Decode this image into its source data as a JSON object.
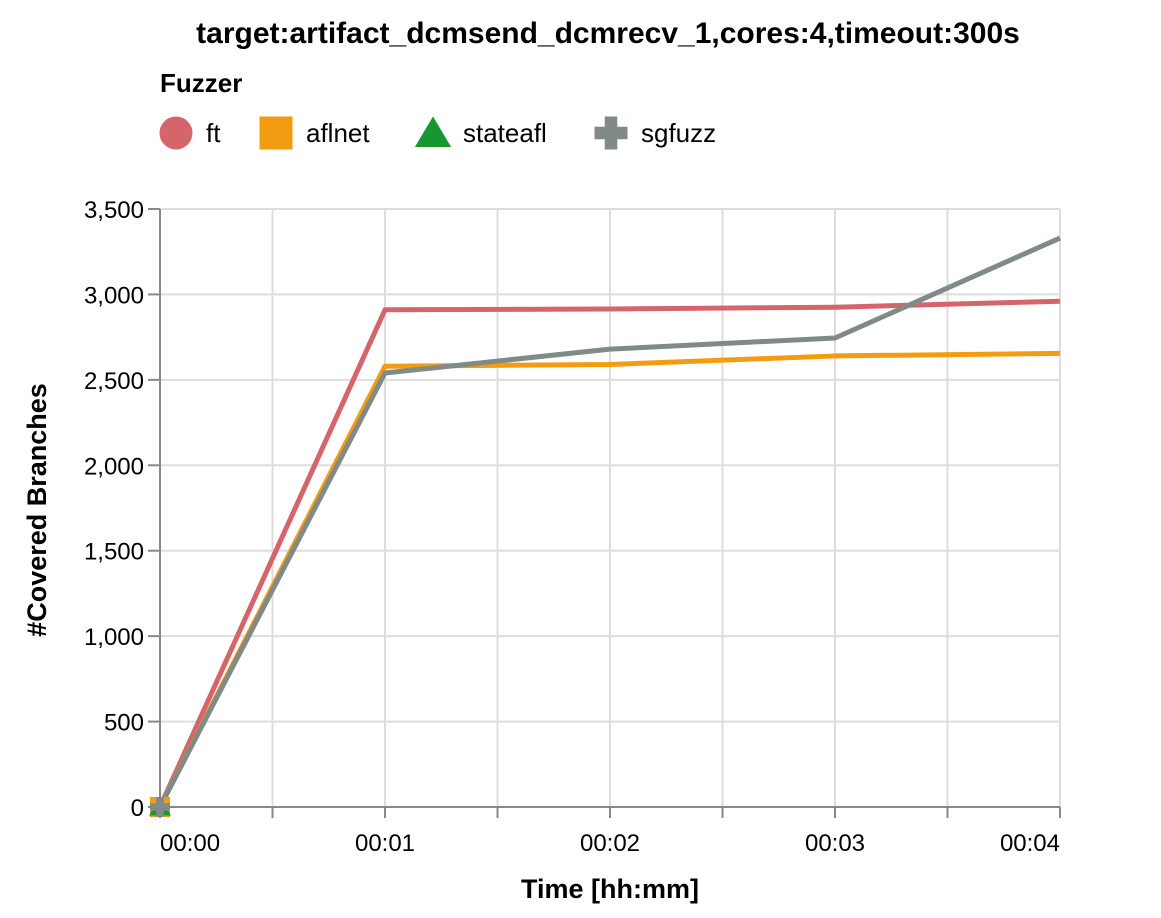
{
  "chart_data": {
    "type": "line",
    "title": "target:artifact_dcmsend_dcmrecv_1,cores:4,timeout:300s",
    "legend_title": "Fuzzer",
    "legend_position": "top-left",
    "xlabel": "Time [hh:mm]",
    "ylabel": "#Covered Branches",
    "grid": true,
    "xlim": [
      0,
      4
    ],
    "ylim": [
      0,
      3500
    ],
    "x_ticks": [
      0,
      0.5,
      1,
      1.5,
      2,
      2.5,
      3,
      3.5,
      4
    ],
    "x_tick_labels": [
      {
        "x": 0,
        "label": "00:00"
      },
      {
        "x": 1,
        "label": "00:01"
      },
      {
        "x": 2,
        "label": "00:02"
      },
      {
        "x": 3,
        "label": "00:03"
      },
      {
        "x": 4,
        "label": "00:04"
      }
    ],
    "y_ticks": [
      {
        "y": 0,
        "label": "0"
      },
      {
        "y": 500,
        "label": "500"
      },
      {
        "y": 1000,
        "label": "1,000"
      },
      {
        "y": 1500,
        "label": "1,500"
      },
      {
        "y": 2000,
        "label": "2,000"
      },
      {
        "y": 2500,
        "label": "2,500"
      },
      {
        "y": 3000,
        "label": "3,000"
      },
      {
        "y": 3500,
        "label": "3,500"
      }
    ],
    "series": [
      {
        "name": "ft",
        "color": "#d6646b",
        "marker": "circle",
        "x": [
          0,
          1,
          2,
          3,
          4
        ],
        "y": [
          0,
          2910,
          2915,
          2925,
          2960
        ]
      },
      {
        "name": "aflnet",
        "color": "#f39c12",
        "marker": "square",
        "x": [
          0,
          1,
          2,
          3,
          4
        ],
        "y": [
          0,
          2580,
          2590,
          2640,
          2655
        ]
      },
      {
        "name": "stateafl",
        "color": "#18962f",
        "marker": "triangle",
        "x": [
          0
        ],
        "y": [
          0
        ]
      },
      {
        "name": "sgfuzz",
        "color": "#808a87",
        "marker": "cross",
        "x": [
          0,
          1,
          2,
          3,
          4
        ],
        "y": [
          0,
          2540,
          2680,
          2745,
          3330
        ]
      }
    ]
  }
}
